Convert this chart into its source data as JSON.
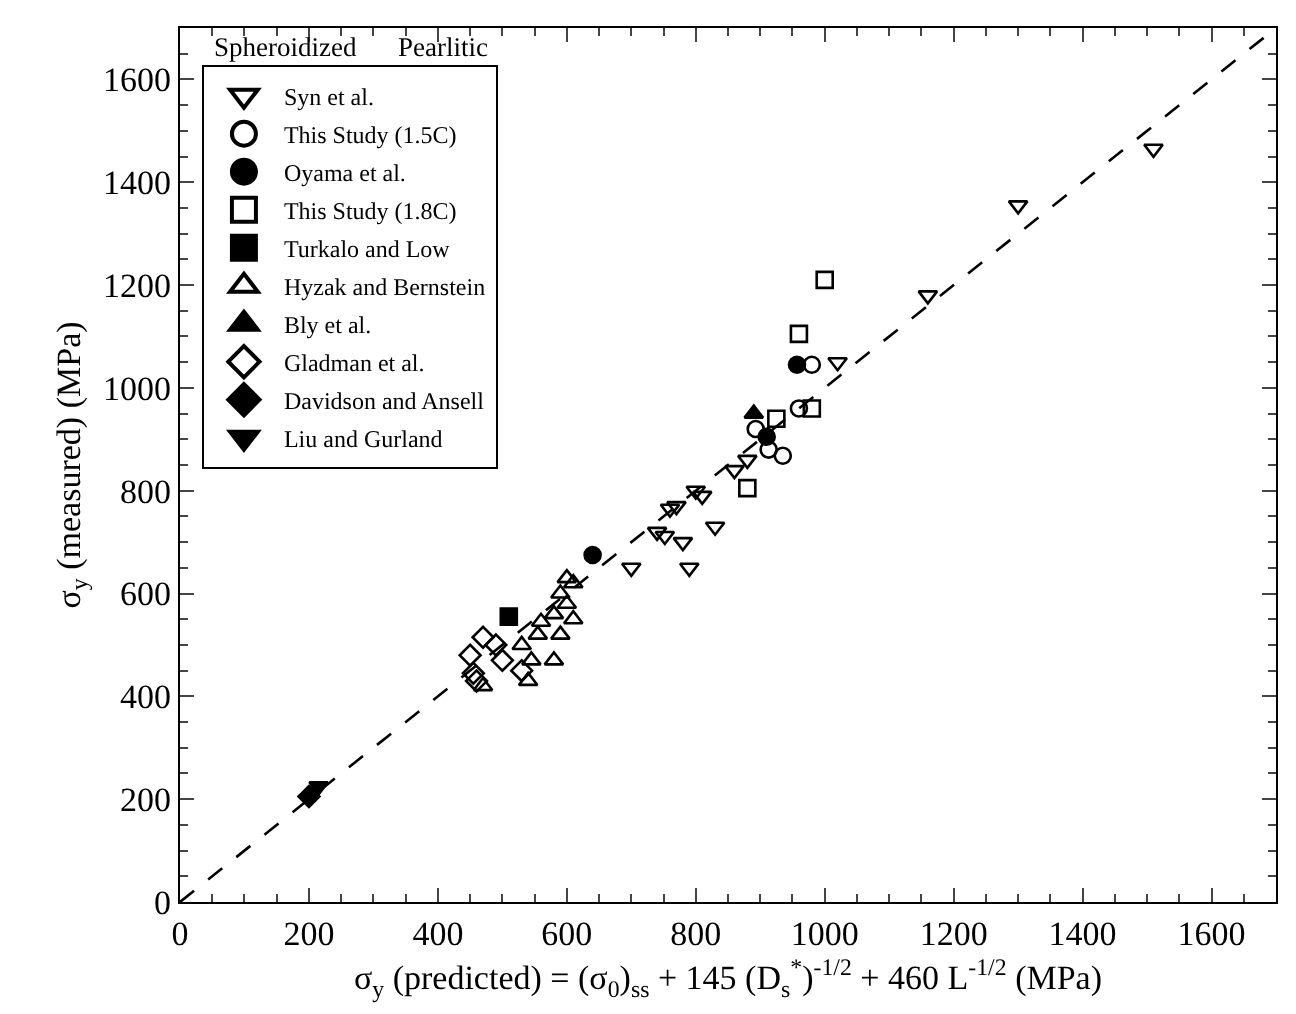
{
  "chart_data": {
    "type": "scatter",
    "xlabel": "σ$_{y}$ (predicted) = (σ$_{0}$)$_{ss}$ + 145 (D$_{s}$$^{*}$)$^{-1/2}$ + 460 L$^{-1/2}$ (MPa)",
    "ylabel": "σ$_{y}$ (measured) (MPa)",
    "annotations": [
      "Spheroidized",
      "Pearlitic"
    ],
    "legend": "top left",
    "xlim": [
      0,
      1700
    ],
    "ylim": [
      0,
      1700
    ],
    "xticks": [
      0,
      200,
      400,
      600,
      800,
      1000,
      1200,
      1400,
      1600
    ],
    "yticks": [
      0,
      200,
      400,
      600,
      800,
      1000,
      1200,
      1400,
      1600
    ],
    "grid": false,
    "series": [
      {
        "name": "Syn et al.",
        "color": "#000000",
        "marker": "triangle-down-open",
        "x": [
          700,
          740,
          752,
          760,
          770,
          780,
          790,
          800,
          810,
          830,
          860,
          880,
          1020,
          1160,
          1300,
          1510
        ],
        "values": [
          650,
          720,
          712,
          765,
          770,
          700,
          650,
          800,
          790,
          730,
          840,
          860,
          1050,
          1180,
          1355,
          1465
        ]
      },
      {
        "name": "This Study (1.5C)",
        "color": "#000000",
        "marker": "circle-open",
        "x": [
          893,
          913,
          935,
          960,
          980
        ],
        "values": [
          920,
          880,
          868,
          960,
          1045
        ]
      },
      {
        "name": "Oyama et al.",
        "color": "#000000",
        "marker": "circle",
        "x": [
          640,
          910,
          957
        ],
        "values": [
          675,
          905,
          1045
        ]
      },
      {
        "name": "This Study (1.8C)",
        "color": "#000000",
        "marker": "square-open",
        "x": [
          880,
          925,
          980,
          960,
          1000
        ],
        "values": [
          805,
          940,
          960,
          1105,
          1210
        ]
      },
      {
        "name": "Turkalo and Low",
        "color": "#000000",
        "marker": "square",
        "x": [
          510
        ],
        "values": [
          555
        ]
      },
      {
        "name": "Hyzak and Bernstein",
        "color": "#000000",
        "marker": "triangle-open",
        "x": [
          470,
          530,
          540,
          545,
          555,
          560,
          580,
          580,
          590,
          590,
          600,
          600,
          610,
          610
        ],
        "values": [
          420,
          500,
          430,
          470,
          520,
          545,
          470,
          560,
          520,
          600,
          580,
          630,
          550,
          620
        ]
      },
      {
        "name": "Bly et al.",
        "color": "#000000",
        "marker": "triangle",
        "x": [
          890
        ],
        "values": [
          950
        ]
      },
      {
        "name": "Gladman et al.",
        "color": "#000000",
        "marker": "diamond-open",
        "x": [
          450,
          455,
          460,
          470,
          490,
          500,
          530
        ],
        "values": [
          480,
          445,
          430,
          515,
          500,
          470,
          450
        ]
      },
      {
        "name": "Davidson and Ansell",
        "color": "#000000",
        "marker": "diamond",
        "x": [
          200
        ],
        "values": [
          205
        ]
      },
      {
        "name": "Liu and Gurland",
        "color": "#000000",
        "marker": "triangle-down",
        "x": [
          215
        ],
        "values": [
          225
        ]
      },
      {
        "type": "line",
        "color": "#000000",
        "line_style": "dashed",
        "x": [
          0,
          1700
        ],
        "values": [
          0,
          1700
        ]
      }
    ]
  }
}
